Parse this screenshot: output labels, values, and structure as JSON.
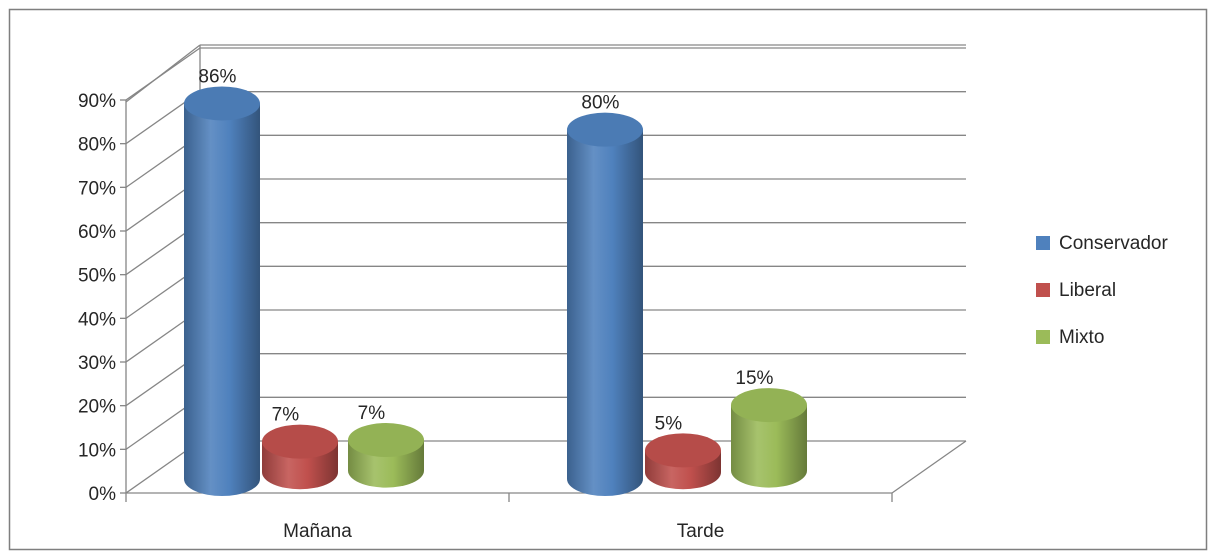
{
  "chart_data": {
    "type": "bar",
    "style": "3d-cylinder",
    "categories": [
      "Mañana",
      "Tarde"
    ],
    "series": [
      {
        "name": "Conservador",
        "values": [
          86,
          80
        ],
        "labels": [
          "86%",
          "80%"
        ],
        "color": "#4f81bd"
      },
      {
        "name": "Liberal",
        "values": [
          7,
          5
        ],
        "labels": [
          "7%",
          "5%"
        ],
        "color": "#c0504d"
      },
      {
        "name": "Mixto",
        "values": [
          7,
          15
        ],
        "labels": [
          "7%",
          "15%"
        ],
        "color": "#9bbb59"
      }
    ],
    "yticks": [
      "0%",
      "10%",
      "20%",
      "30%",
      "40%",
      "50%",
      "60%",
      "70%",
      "80%",
      "90%"
    ],
    "ylim": [
      0,
      90
    ],
    "grid": true,
    "legend": "right"
  }
}
